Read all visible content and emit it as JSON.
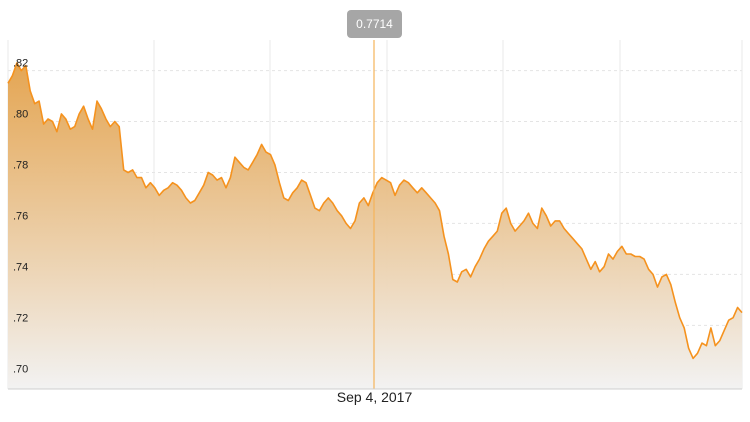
{
  "chart_data": {
    "type": "area",
    "x_label": "Sep 4, 2017",
    "tooltip": {
      "value": "0.7714"
    },
    "y_ticks": [
      {
        "value": 0.82,
        "label": ".82"
      },
      {
        "value": 0.8,
        "label": ".80"
      },
      {
        "value": 0.78,
        "label": ".78"
      },
      {
        "value": 0.76,
        "label": ".76"
      },
      {
        "value": 0.74,
        "label": ".74"
      },
      {
        "value": 0.72,
        "label": ".72"
      },
      {
        "value": 0.7,
        "label": ".70"
      }
    ],
    "ylim": [
      0.695,
      0.832
    ],
    "grid": true,
    "colors": {
      "line": "#f5921e",
      "fill_top": "#e3a14a",
      "fill_bottom": "#f2f2f2",
      "crosshair": "#f5b35a",
      "tooltip_bg": "#a6a6a6"
    },
    "series": [
      {
        "values": [
          0.815,
          0.818,
          0.823,
          0.82,
          0.822,
          0.812,
          0.807,
          0.808,
          0.799,
          0.801,
          0.8,
          0.796,
          0.803,
          0.801,
          0.797,
          0.798,
          0.803,
          0.806,
          0.801,
          0.797,
          0.808,
          0.805,
          0.801,
          0.798,
          0.8,
          0.798,
          0.781,
          0.78,
          0.781,
          0.778,
          0.778,
          0.774,
          0.776,
          0.774,
          0.771,
          0.773,
          0.774,
          0.776,
          0.775,
          0.773,
          0.77,
          0.768,
          0.769,
          0.772,
          0.775,
          0.78,
          0.779,
          0.777,
          0.778,
          0.774,
          0.778,
          0.786,
          0.784,
          0.782,
          0.781,
          0.784,
          0.787,
          0.791,
          0.788,
          0.787,
          0.783,
          0.776,
          0.77,
          0.769,
          0.772,
          0.774,
          0.777,
          0.776,
          0.771,
          0.766,
          0.765,
          0.768,
          0.77,
          0.768,
          0.765,
          0.763,
          0.76,
          0.758,
          0.761,
          0.768,
          0.77,
          0.767,
          0.772,
          0.776,
          0.778,
          0.777,
          0.776,
          0.771,
          0.775,
          0.777,
          0.776,
          0.774,
          0.772,
          0.774,
          0.772,
          0.77,
          0.768,
          0.765,
          0.755,
          0.748,
          0.738,
          0.737,
          0.741,
          0.742,
          0.739,
          0.743,
          0.746,
          0.75,
          0.753,
          0.755,
          0.757,
          0.764,
          0.766,
          0.76,
          0.757,
          0.759,
          0.761,
          0.764,
          0.76,
          0.758,
          0.766,
          0.763,
          0.759,
          0.761,
          0.761,
          0.758,
          0.756,
          0.754,
          0.752,
          0.75,
          0.746,
          0.742,
          0.745,
          0.741,
          0.743,
          0.748,
          0.746,
          0.749,
          0.751,
          0.748,
          0.748,
          0.747,
          0.747,
          0.746,
          0.742,
          0.74,
          0.735,
          0.739,
          0.74,
          0.736,
          0.729,
          0.723,
          0.719,
          0.711,
          0.707,
          0.709,
          0.713,
          0.712,
          0.719,
          0.712,
          0.714,
          0.718,
          0.722,
          0.723,
          0.727,
          0.725
        ]
      }
    ]
  }
}
